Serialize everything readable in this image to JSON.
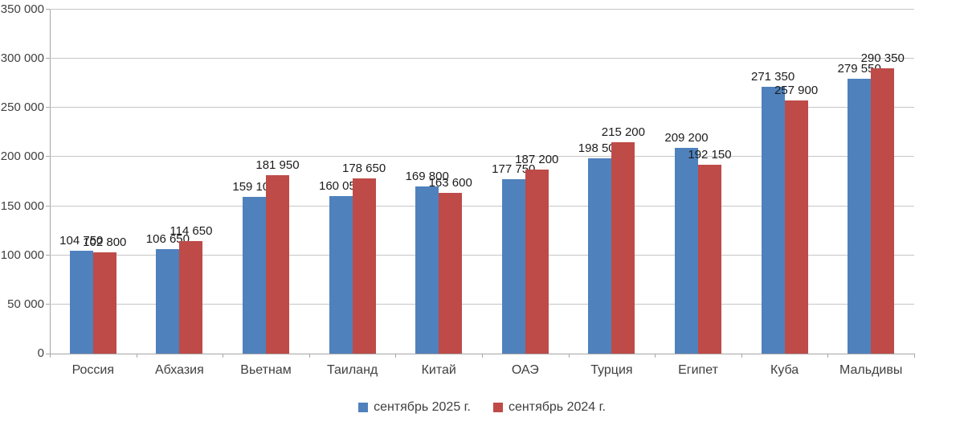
{
  "chart_data": {
    "type": "bar",
    "title": "",
    "xlabel": "",
    "ylabel": "",
    "categories": [
      "Россия",
      "Абхазия",
      "Вьетнам",
      "Таиланд",
      "Китай",
      "ОАЭ",
      "Турция",
      "Египет",
      "Куба",
      "Мальдивы"
    ],
    "series": [
      {
        "name": "сентябрь 2025 г.",
        "color": "#4f81bd",
        "values": [
          104750,
          106650,
          159100,
          160050,
          169800,
          177750,
          198500,
          209200,
          271350,
          279550
        ],
        "data_labels": [
          "104 750",
          "106 650",
          "159 100",
          "160 050",
          "169 800",
          "177 750",
          "198 500",
          "209 200",
          "271 350",
          "279 550"
        ]
      },
      {
        "name": "сентябрь 2024 г.",
        "color": "#be4b48",
        "values": [
          102800,
          114650,
          181950,
          178650,
          163600,
          187200,
          215200,
          192150,
          257900,
          290350
        ],
        "data_labels": [
          "102 800",
          "114 650",
          "181 950",
          "178 650",
          "163 600",
          "187 200",
          "215 200",
          "192 150",
          "257 900",
          "290 350"
        ]
      }
    ],
    "ylim": [
      0,
      350000
    ],
    "ytick_step": 50000,
    "ytick_labels": [
      "0",
      "50 000",
      "100 000",
      "150 000",
      "200 000",
      "250 000",
      "300 000",
      "350 000"
    ],
    "grid": true,
    "legend_position": "bottom",
    "colors": {
      "gridline": "#c6c6c6",
      "axis": "#a6a6a6",
      "axis_text": "#3f3f3f",
      "value_label_text": "#1c1c1c",
      "background": "#ffffff"
    }
  }
}
